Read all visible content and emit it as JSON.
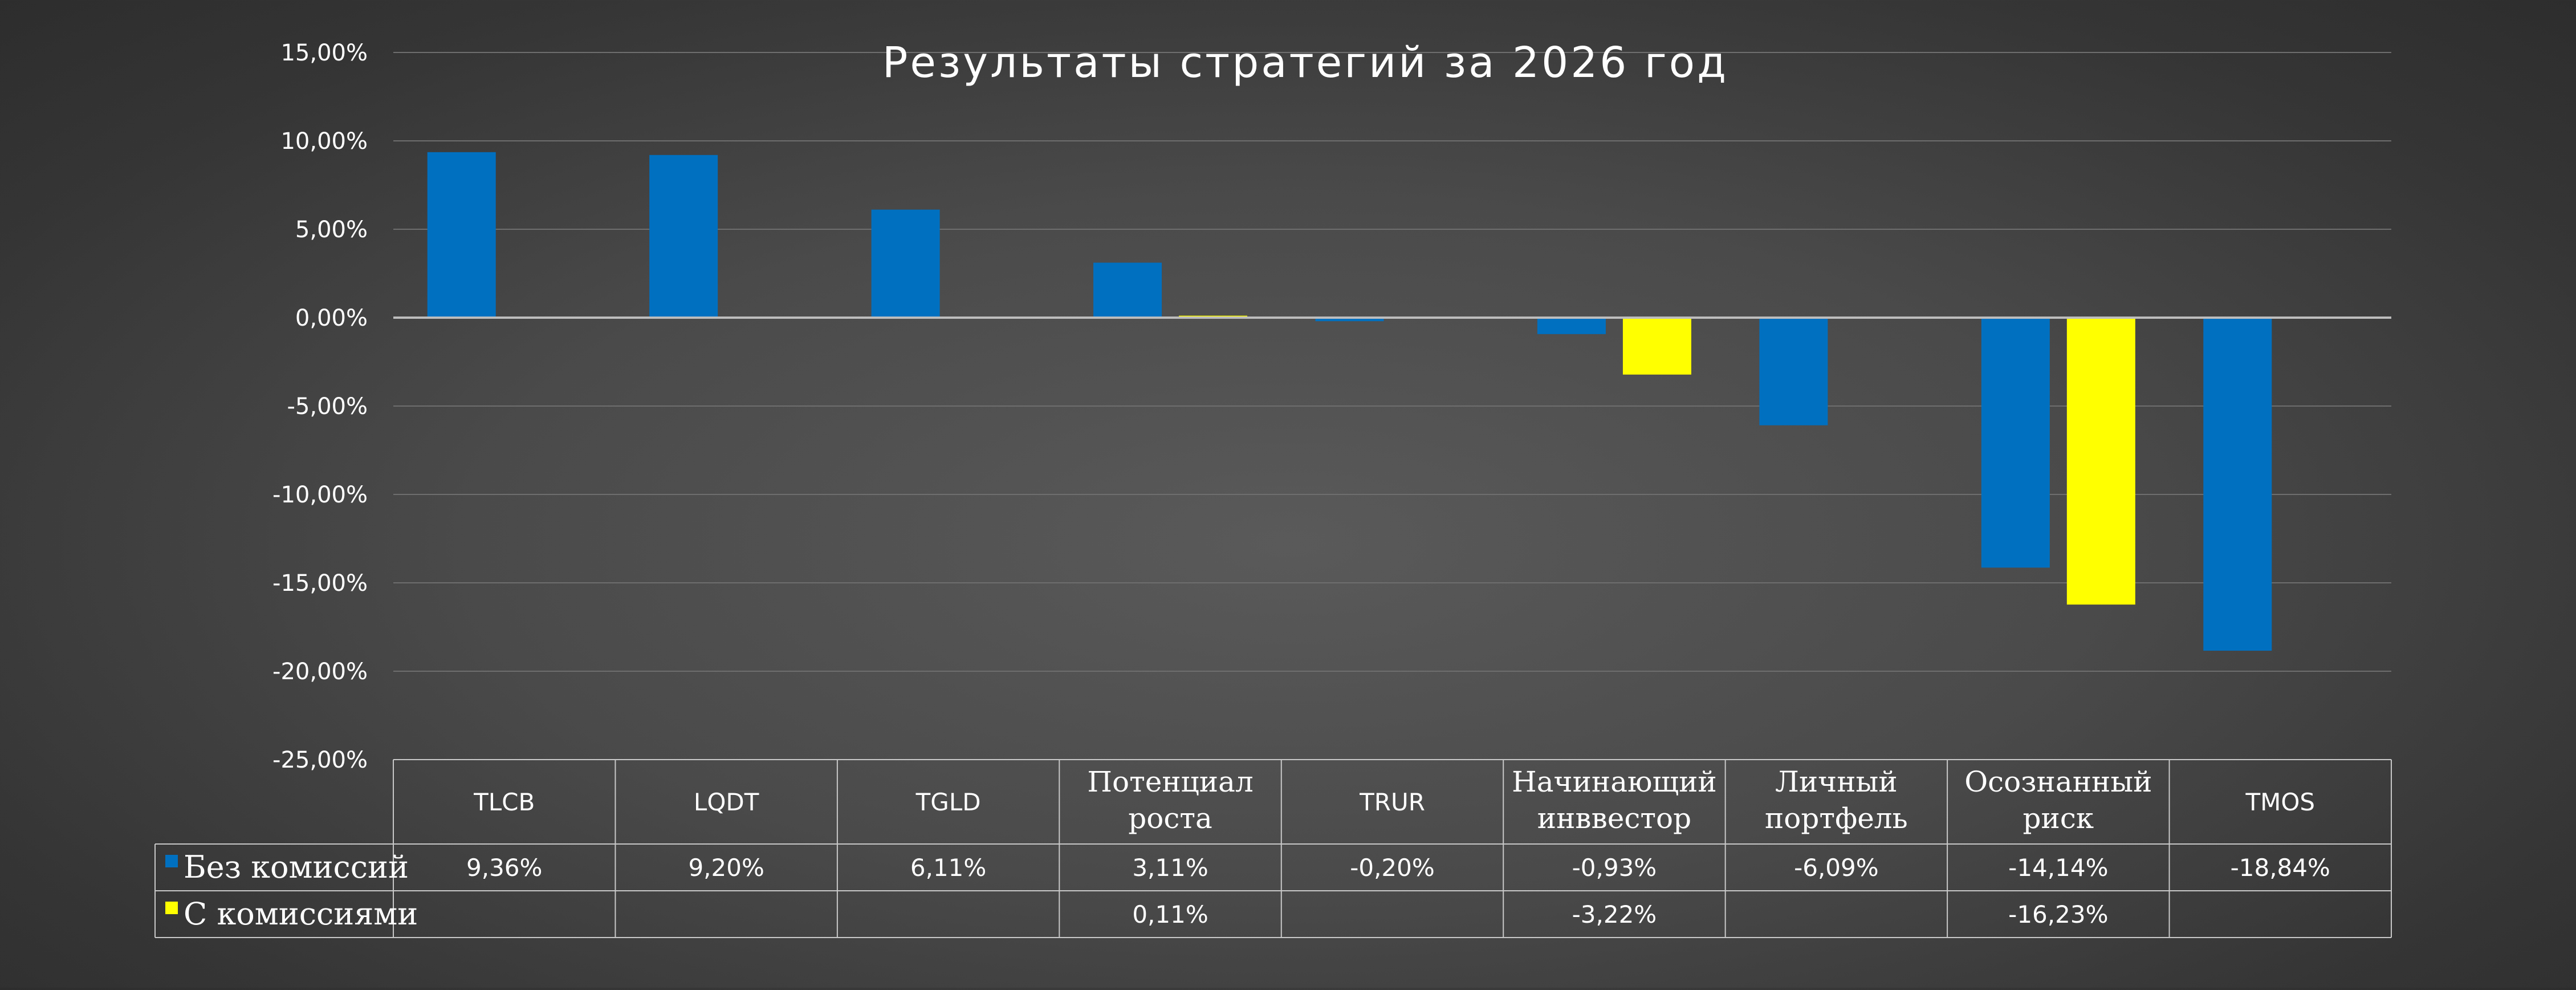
{
  "chart_data": {
    "type": "bar",
    "title": "Результаты стратегий за 2026 год",
    "categories": [
      {
        "lines": [
          "TLCB"
        ],
        "serif": false
      },
      {
        "lines": [
          "LQDT"
        ],
        "serif": false
      },
      {
        "lines": [
          "TGLD"
        ],
        "serif": false
      },
      {
        "lines": [
          "Потенциал",
          "роста"
        ],
        "serif": true
      },
      {
        "lines": [
          "TRUR"
        ],
        "serif": false
      },
      {
        "lines": [
          "Начинающий",
          "инввестор"
        ],
        "serif": true
      },
      {
        "lines": [
          "Личный",
          "портфель"
        ],
        "serif": true
      },
      {
        "lines": [
          "Осознанный",
          "риск"
        ],
        "serif": true
      },
      {
        "lines": [
          "TMOS"
        ],
        "serif": false
      }
    ],
    "series": [
      {
        "name": "Без комиссий",
        "color": "#0070C0",
        "values": [
          9.36,
          9.2,
          6.11,
          3.11,
          -0.2,
          -0.93,
          -6.09,
          -14.14,
          -18.84
        ],
        "labels": [
          "9,36%",
          "9,20%",
          "6,11%",
          "3,11%",
          "-0,20%",
          "-0,93%",
          "-6,09%",
          "-14,14%",
          "-18,84%"
        ]
      },
      {
        "name": "С комиссиями",
        "color": "#FFFF00",
        "values": [
          null,
          null,
          null,
          0.11,
          null,
          -3.22,
          null,
          -16.23,
          null
        ],
        "labels": [
          "",
          "",
          "",
          "0,11%",
          "",
          "-3,22%",
          "",
          "-16,23%",
          ""
        ]
      }
    ],
    "ylim": [
      -25,
      15
    ],
    "yticks": [
      15,
      10,
      5,
      0,
      -5,
      -10,
      -15,
      -20,
      -25
    ],
    "ytick_labels": [
      "15,00%",
      "10,00%",
      "5,00%",
      "0,00%",
      "-5,00%",
      "-10,00%",
      "-15,00%",
      "-20,00%",
      "-25,00%"
    ],
    "grid": true,
    "legend": "data-table",
    "xlabel": "",
    "ylabel": ""
  }
}
